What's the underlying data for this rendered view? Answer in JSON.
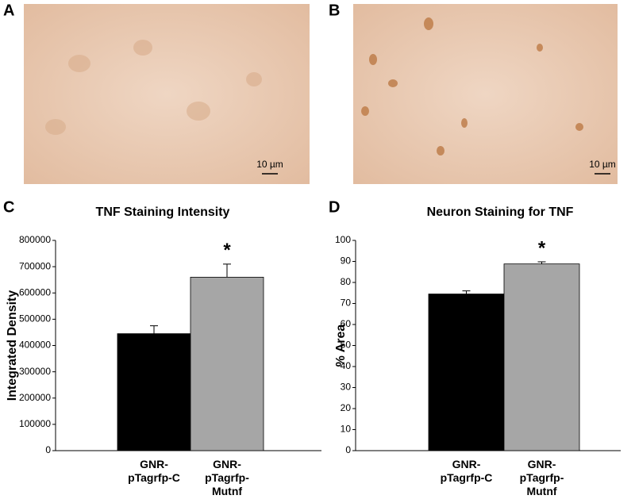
{
  "panels": [
    {
      "label": "A",
      "scale_bar": "10 µm"
    },
    {
      "label": "B",
      "scale_bar": "10 µm"
    },
    {
      "label": "C"
    },
    {
      "label": "D"
    }
  ],
  "chart_data": [
    {
      "type": "bar",
      "title": "TNF Staining Intensity",
      "y_label": "Integrated Density",
      "categories": [
        "GNR-pTagrfp-C",
        "GNR-pTagrfp-Mutnf"
      ],
      "values": [
        445000,
        660000
      ],
      "errors": [
        30000,
        50000
      ],
      "colors": [
        "#000000",
        "#a6a6a6"
      ],
      "annotation": "*",
      "ylim": [
        0,
        800000
      ],
      "yticks": [
        0,
        100000,
        200000,
        300000,
        400000,
        500000,
        600000,
        700000,
        800000
      ]
    },
    {
      "type": "bar",
      "title": "Neuron Staining for TNF",
      "y_label": "% Area",
      "categories": [
        "GNR-pTagrfp-C",
        "GNR-pTagrfp-Mutnf"
      ],
      "values": [
        74.5,
        88.8
      ],
      "errors": [
        1.5,
        1
      ],
      "colors": [
        "#000000",
        "#a6a6a6"
      ],
      "annotation": "*",
      "ylim": [
        0,
        100
      ],
      "yticks": [
        0,
        10,
        20,
        30,
        40,
        50,
        60,
        70,
        80,
        90,
        100
      ]
    }
  ]
}
